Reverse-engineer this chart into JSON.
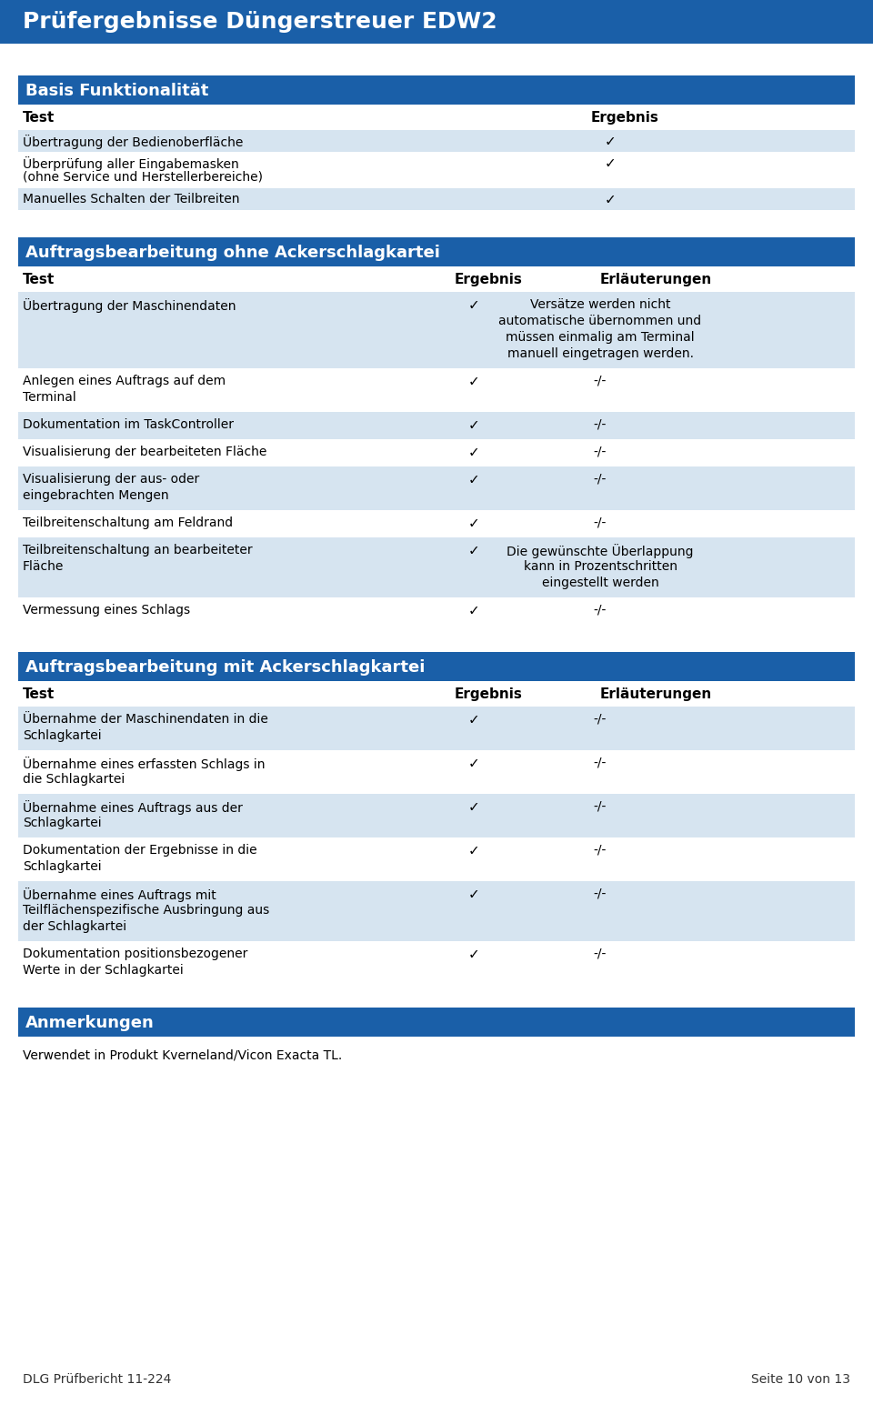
{
  "title": "Prüfergebnisse Düngerstreuer EDW2",
  "header_bg": "#1a5fa8",
  "header_text_color": "#ffffff",
  "section_bg": "#1a5fa8",
  "row_bg_alt": "#d6e4f0",
  "row_bg_white": "#ffffff",
  "text_color": "#000000",
  "checkmark": "✓",
  "page_bg": "#ffffff",
  "section1": {
    "title": "Basis Funktionalität",
    "columns": [
      "Test",
      "Ergebnis"
    ],
    "rows": [
      {
        "test": "Übertragung der Bedienoberfläche",
        "ergebnis": "✓",
        "alt": true
      },
      {
        "test": "Überprüfung aller Eingabemasken\n(ohne Service und Herstellerbereiche)",
        "ergebnis": "✓",
        "alt": false
      },
      {
        "test": "Manuelles Schalten der Teilbreiten",
        "ergebnis": "✓",
        "alt": true
      }
    ]
  },
  "section2": {
    "title": "Auftragsbearbeitung ohne Ackerschlagkartei",
    "columns": [
      "Test",
      "Ergebnis",
      "Erläuterungen"
    ],
    "rows": [
      {
        "test": "Übertragung der Maschinendaten",
        "ergebnis": "✓",
        "erl": "Versätze werden nicht\nautomatische übernommen und\nmüssen einmalig am Terminal\nmanuell eingetragen werden.",
        "alt": true
      },
      {
        "test": "Anlegen eines Auftrags auf dem\nTerminal",
        "ergebnis": "✓",
        "erl": "-/-",
        "alt": false
      },
      {
        "test": "Dokumentation im TaskController",
        "ergebnis": "✓",
        "erl": "-/-",
        "alt": true
      },
      {
        "test": "Visualisierung der bearbeiteten Fläche",
        "ergebnis": "✓",
        "erl": "-/-",
        "alt": false
      },
      {
        "test": "Visualisierung der aus- oder\neingebrachten Mengen",
        "ergebnis": "✓",
        "erl": "-/-",
        "alt": true
      },
      {
        "test": "Teilbreitenschaltung am Feldrand",
        "ergebnis": "✓",
        "erl": "-/-",
        "alt": false
      },
      {
        "test": "Teilbreitenschaltung an bearbeiteter\nFläche",
        "ergebnis": "✓",
        "erl": "Die gewünschte Überlappung\nkann in Prozentschritten\neingestellt werden",
        "alt": true
      },
      {
        "test": "Vermessung eines Schlags",
        "ergebnis": "✓",
        "erl": "-/-",
        "alt": false
      }
    ]
  },
  "section3": {
    "title": "Auftragsbearbeitung mit Ackerschlagkartei",
    "columns": [
      "Test",
      "Ergebnis",
      "Erläuterungen"
    ],
    "rows": [
      {
        "test": "Übernahme der Maschinendaten in die\nSchlagkartei",
        "ergebnis": "✓",
        "erl": "-/-",
        "alt": true
      },
      {
        "test": "Übernahme eines erfassten Schlags in\ndie Schlagkartei",
        "ergebnis": "✓",
        "erl": "-/-",
        "alt": false
      },
      {
        "test": "Übernahme eines Auftrags aus der\nSchlagkartei",
        "ergebnis": "✓",
        "erl": "-/-",
        "alt": true
      },
      {
        "test": "Dokumentation der Ergebnisse in die\nSchlagkartei",
        "ergebnis": "✓",
        "erl": "-/-",
        "alt": false
      },
      {
        "test": "Übernahme eines Auftrags mit\nTeilflächenspezifische Ausbringung aus\nder Schlagkartei",
        "ergebnis": "✓",
        "erl": "-/-",
        "alt": true
      },
      {
        "test": "Dokumentation positionsbezogener\nWerte in der Schlagkartei",
        "ergebnis": "✓",
        "erl": "-/-",
        "alt": false
      }
    ]
  },
  "section4": {
    "title": "Anmerkungen",
    "text": "Verwendet in Produkt Kverneland/Vicon Exacta TL."
  },
  "footer_left": "DLG Prüfbericht 11-224",
  "footer_right": "Seite 10 von 13"
}
